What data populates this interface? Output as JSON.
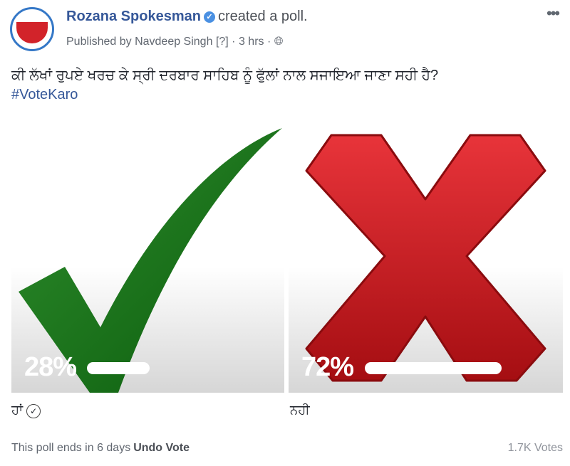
{
  "post": {
    "page_name": "Rozana Spokesman",
    "action": "created a poll.",
    "published_by": "Published by Navdeep Singh",
    "help": "[?]",
    "time": "3 hrs",
    "question": "ਕੀ ਲੱਖਾਂ ਰੁਪਏ ਖਰਚ ਕੇ ਸ੍ਰੀ ਦਰਬਾਰ ਸਾਹਿਬ ਨੂੰ ਫੁੱਲਾਂ ਨਾਲ ਸਜਾਇਆ ਜਾਣਾ ਸਹੀ ਹੈ?",
    "hashtag": "#VoteKaro"
  },
  "poll": {
    "options": [
      {
        "label": "ਹਾਂ",
        "percent_text": "28%",
        "percent": 28,
        "selected": true,
        "image": "green-checkmark"
      },
      {
        "label": "ਨਹੀ",
        "percent_text": "72%",
        "percent": 72,
        "selected": false,
        "image": "red-x"
      }
    ],
    "ends": "This poll ends in 6 days",
    "undo": "Undo Vote",
    "votes": "1.7K Votes"
  },
  "colors": {
    "link": "#365899",
    "check": "#0f6a12",
    "x": "#d0161b"
  }
}
